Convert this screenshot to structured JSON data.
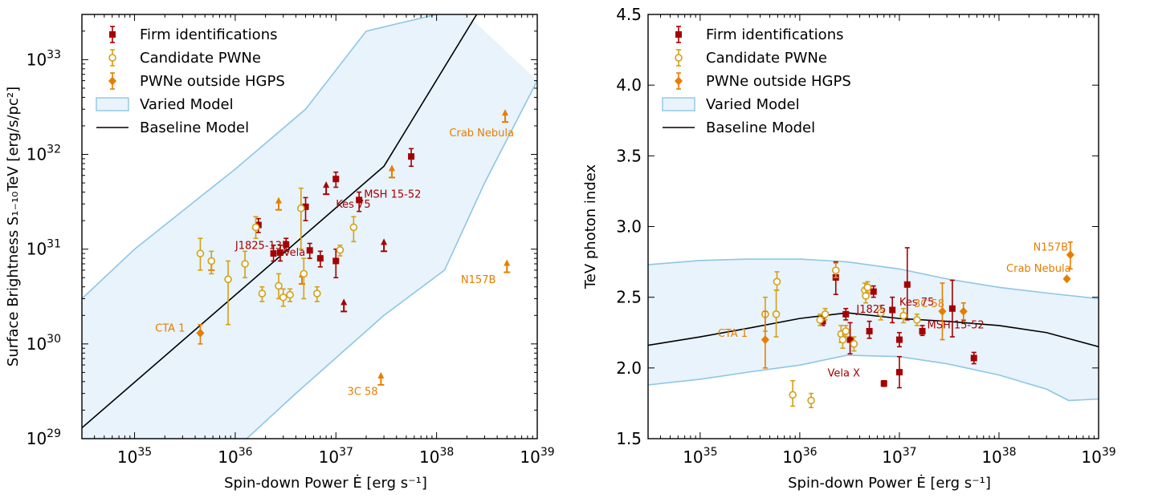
{
  "colors": {
    "firm": "#a50000",
    "candidate": "#d4a017",
    "outside": "#e67e00",
    "band_fill": "#e8f3fb",
    "band_edge": "#8ec6e6",
    "baseline": "#000000"
  },
  "chart_data": [
    {
      "type": "scatter",
      "xlabel": "Spin-down Power Ė [erg s⁻¹]",
      "ylabel": "Surface Brightness S₁₋₁₀TeV [erg/s/pc²]",
      "xscale": "log",
      "yscale": "log",
      "xlim": [
        3e+34,
        1e+39
      ],
      "ylim": [
        1e+29,
        3e+33
      ],
      "xticks": [
        {
          "value": 1e+35,
          "base": "10",
          "exp": "35"
        },
        {
          "value": 1e+36,
          "base": "10",
          "exp": "36"
        },
        {
          "value": 1e+37,
          "base": "10",
          "exp": "37"
        },
        {
          "value": 1e+38,
          "base": "10",
          "exp": "38"
        },
        {
          "value": 1e+39,
          "base": "10",
          "exp": "39"
        }
      ],
      "yticks": [
        {
          "value": 1e+29,
          "base": "10",
          "exp": "29"
        },
        {
          "value": 1e+30,
          "base": "10",
          "exp": "30"
        },
        {
          "value": 1e+31,
          "base": "10",
          "exp": "31"
        },
        {
          "value": 1e+32,
          "base": "10",
          "exp": "32"
        },
        {
          "value": 1e+33,
          "base": "10",
          "exp": "33"
        }
      ],
      "legend": {
        "placement": "top-left",
        "entries": [
          "Firm identifications",
          "Candidate PWNe",
          "PWNe outside HGPS",
          "Varied Model",
          "Baseline Model"
        ]
      },
      "series": [
        {
          "name": "Firm identifications",
          "marker": "square",
          "color_key": "firm",
          "points": [
            {
              "x": 1.7e+36,
              "y": 1.8e+31,
              "ylo": 1.5e+31,
              "yhi": 2.1e+31
            },
            {
              "x": 2.4e+36,
              "y": 9e+30,
              "ylo": 7.5e+30,
              "yhi": 1.1e+31
            },
            {
              "x": 2.8e+36,
              "y": 9.2e+30,
              "ylo": 7.5e+30,
              "yhi": 1.1e+31
            },
            {
              "x": 3.2e+36,
              "y": 1.12e+31,
              "ylo": 9.5e+30,
              "yhi": 1.3e+31
            },
            {
              "x": 5e+36,
              "y": 2.8e+31,
              "ylo": 2e+31,
              "yhi": 3.5e+31
            },
            {
              "x": 5.5e+36,
              "y": 9.7e+30,
              "ylo": 8e+30,
              "yhi": 1.15e+31
            },
            {
              "x": 7e+36,
              "y": 8e+30,
              "ylo": 6.5e+30,
              "yhi": 9.5e+30
            },
            {
              "x": 1e+37,
              "y": 7.5e+30,
              "ylo": 5e+30,
              "yhi": 1e+31
            },
            {
              "x": 1e+37,
              "y": 5.5e+31,
              "ylo": 4.5e+31,
              "yhi": 6.5e+31
            },
            {
              "x": 1.7e+37,
              "y": 3.3e+31,
              "ylo": 2.5e+31,
              "yhi": 4e+31
            },
            {
              "x": 5.6e+37,
              "y": 9.5e+31,
              "ylo": 7.5e+31,
              "yhi": 1.15e+32
            }
          ]
        },
        {
          "name": "Candidate PWNe",
          "marker": "circle",
          "color_key": "candidate",
          "points": [
            {
              "x": 4.5e+35,
              "y": 9e+30,
              "ylo": 6e+30,
              "yhi": 1.3e+31
            },
            {
              "x": 5.8e+35,
              "y": 7.5e+30,
              "ylo": 5.5e+30,
              "yhi": 9.5e+30
            },
            {
              "x": 8.5e+35,
              "y": 4.8e+30,
              "ylo": 1.6e+30,
              "yhi": 7.5e+30
            },
            {
              "x": 1.25e+36,
              "y": 7e+30,
              "ylo": 5e+30,
              "yhi": 9.5e+30
            },
            {
              "x": 1.6e+36,
              "y": 1.7e+31,
              "ylo": 1.3e+31,
              "yhi": 2.2e+31
            },
            {
              "x": 1.85e+36,
              "y": 3.4e+30,
              "ylo": 2.8e+30,
              "yhi": 4e+30
            },
            {
              "x": 2.7e+36,
              "y": 4.1e+30,
              "ylo": 3e+30,
              "yhi": 5.5e+30
            },
            {
              "x": 3e+36,
              "y": 3.1e+30,
              "ylo": 2.5e+30,
              "yhi": 3.8e+30
            },
            {
              "x": 3.5e+36,
              "y": 3.3e+30,
              "ylo": 2.8e+30,
              "yhi": 3.8e+30
            },
            {
              "x": 4.5e+36,
              "y": 2.7e+31,
              "ylo": 1e+31,
              "yhi": 4.4e+31
            },
            {
              "x": 4.8e+36,
              "y": 5.5e+30,
              "ylo": 3e+30,
              "yhi": 8e+30
            },
            {
              "x": 6.5e+36,
              "y": 3.4e+30,
              "ylo": 2.8e+30,
              "yhi": 4e+30
            },
            {
              "x": 1.1e+37,
              "y": 9.8e+30,
              "ylo": 8.5e+30,
              "yhi": 1.1e+31
            },
            {
              "x": 1.5e+37,
              "y": 1.7e+31,
              "ylo": 1.2e+31,
              "yhi": 2.2e+31
            }
          ]
        },
        {
          "name": "PWNe outside HGPS",
          "marker": "diamond",
          "color_key": "outside",
          "points": [
            {
              "x": 4.5e+35,
              "y": 1.3e+30,
              "ylo": 1e+30,
              "yhi": 1.6e+30
            }
          ]
        }
      ],
      "lower_limits": [
        {
          "x": 2.7e+36,
          "y": 2.6e+31,
          "color_key": "outside"
        },
        {
          "x": 5.8e+35,
          "y": 6e+30,
          "color_key": "outside"
        },
        {
          "x": 4.6e+36,
          "y": 4.3e+30,
          "color_key": "outside"
        },
        {
          "x": 8e+36,
          "y": 3.8e+31,
          "color_key": "firm"
        },
        {
          "x": 1.2e+37,
          "y": 2.2e+30,
          "color_key": "firm"
        },
        {
          "x": 3e+37,
          "y": 9.5e+30,
          "color_key": "firm"
        },
        {
          "x": 3.6e+37,
          "y": 5.7e+31,
          "color_key": "outside"
        },
        {
          "x": 2.8e+37,
          "y": 3.7e+29,
          "color_key": "outside"
        },
        {
          "x": 4.8e+38,
          "y": 2.2e+32,
          "color_key": "outside"
        },
        {
          "x": 5e+38,
          "y": 5.7e+30,
          "color_key": "outside"
        }
      ],
      "baseline_model": {
        "x": [
          3e+34,
          3e+37,
          2.5e+38
        ],
        "y": [
          1.3e+29,
          7.5e+31,
          3e+33
        ]
      },
      "varied_model": {
        "upper": {
          "x": [
            3e+34,
            1e+35,
            1e+36,
            5e+36,
            2e+37,
            1e+38,
            2e+38,
            2e+38
          ],
          "y": [
            3e+30,
            1e+31,
            7e+31,
            3e+32,
            2e+33,
            3e+33,
            3e+33,
            3e+33
          ]
        },
        "lower": {
          "x": [
            3e+34,
            1.3e+36,
            4e+36,
            3e+37,
            1.2e+38,
            3e+38,
            1e+39
          ],
          "y": [
            1e+29,
            1e+29,
            3e+29,
            2e+30,
            6e+30,
            5e+31,
            6e+32
          ]
        }
      },
      "annotations": [
        {
          "text": "Crab Nebula",
          "x": 2.8e+38,
          "y": 1.55e+32,
          "color_key": "outside",
          "anchor": "middle"
        },
        {
          "text": "MSH 15-52",
          "x": 1.9e+37,
          "y": 3.5e+31,
          "color_key": "firm",
          "anchor": "start"
        },
        {
          "text": "Kes 75",
          "x": 1e+37,
          "y": 2.75e+31,
          "color_key": "firm",
          "anchor": "start"
        },
        {
          "text": "J1825-137",
          "x": 1e+36,
          "y": 1e+31,
          "color_key": "firm",
          "anchor": "start"
        },
        {
          "text": "Vela",
          "x": 3e+36,
          "y": 8.5e+30,
          "color_key": "firm",
          "anchor": "start"
        },
        {
          "text": "N157B",
          "x": 2.6e+38,
          "y": 4.4e+30,
          "color_key": "outside",
          "anchor": "middle"
        },
        {
          "text": "CTA 1",
          "x": 1.6e+35,
          "y": 1.35e+30,
          "color_key": "outside",
          "anchor": "start"
        },
        {
          "text": "3C 58",
          "x": 1.3e+37,
          "y": 2.9e+29,
          "color_key": "outside",
          "anchor": "start"
        }
      ]
    },
    {
      "type": "scatter",
      "xlabel": "Spin-down Power Ė [erg s⁻¹]",
      "ylabel": "TeV photon index",
      "xscale": "log",
      "yscale": "linear",
      "xlim": [
        3e+34,
        1e+39
      ],
      "ylim": [
        1.5,
        4.5
      ],
      "xticks": [
        {
          "value": 1e+35,
          "base": "10",
          "exp": "35"
        },
        {
          "value": 1e+36,
          "base": "10",
          "exp": "36"
        },
        {
          "value": 1e+37,
          "base": "10",
          "exp": "37"
        },
        {
          "value": 1e+38,
          "base": "10",
          "exp": "38"
        },
        {
          "value": 1e+39,
          "base": "10",
          "exp": "39"
        }
      ],
      "yticks": [
        {
          "value": 1.5,
          "label": "1.5"
        },
        {
          "value": 2.0,
          "label": "2.0"
        },
        {
          "value": 2.5,
          "label": "2.5"
        },
        {
          "value": 3.0,
          "label": "3.0"
        },
        {
          "value": 3.5,
          "label": "3.5"
        },
        {
          "value": 4.0,
          "label": "4.0"
        },
        {
          "value": 4.5,
          "label": "4.5"
        }
      ],
      "legend": {
        "placement": "top-left",
        "entries": [
          "Firm identifications",
          "Candidate PWNe",
          "PWNe outside HGPS",
          "Varied Model",
          "Baseline Model"
        ]
      },
      "series": [
        {
          "name": "Firm identifications",
          "marker": "square",
          "color_key": "firm",
          "points": [
            {
              "x": 1.7e+36,
              "y": 2.33,
              "ylo": 2.3,
              "yhi": 2.36
            },
            {
              "x": 2.3e+36,
              "y": 2.64,
              "ylo": 2.52,
              "yhi": 2.75
            },
            {
              "x": 2.9e+36,
              "y": 2.38,
              "ylo": 2.34,
              "yhi": 2.42
            },
            {
              "x": 3.2e+36,
              "y": 2.2,
              "ylo": 2.1,
              "yhi": 2.32
            },
            {
              "x": 5e+36,
              "y": 2.26,
              "ylo": 2.21,
              "yhi": 2.33
            },
            {
              "x": 5.5e+36,
              "y": 2.54,
              "ylo": 2.5,
              "yhi": 2.58
            },
            {
              "x": 7e+36,
              "y": 1.89,
              "ylo": 1.87,
              "yhi": 1.91
            },
            {
              "x": 8.5e+36,
              "y": 2.41,
              "ylo": 2.32,
              "yhi": 2.5
            },
            {
              "x": 1e+37,
              "y": 2.2,
              "ylo": 2.15,
              "yhi": 2.25
            },
            {
              "x": 1e+37,
              "y": 1.97,
              "ylo": 1.86,
              "yhi": 2.08
            },
            {
              "x": 1.2e+37,
              "y": 2.59,
              "ylo": 2.34,
              "yhi": 2.85
            },
            {
              "x": 1.7e+37,
              "y": 2.26,
              "ylo": 2.23,
              "yhi": 2.3
            },
            {
              "x": 3.4e+37,
              "y": 2.42,
              "ylo": 2.22,
              "yhi": 2.62
            },
            {
              "x": 5.6e+37,
              "y": 2.07,
              "ylo": 2.03,
              "yhi": 2.11
            }
          ]
        },
        {
          "name": "Candidate PWNe",
          "marker": "circle",
          "color_key": "candidate",
          "points": [
            {
              "x": 4.5e+35,
              "y": 2.38,
              "ylo": 2.26,
              "yhi": 2.5
            },
            {
              "x": 5.8e+35,
              "y": 2.38,
              "ylo": 2.22,
              "yhi": 2.55
            },
            {
              "x": 5.9e+35,
              "y": 2.61,
              "ylo": 2.55,
              "yhi": 2.68
            },
            {
              "x": 8.5e+35,
              "y": 1.81,
              "ylo": 1.73,
              "yhi": 1.91
            },
            {
              "x": 1.3e+36,
              "y": 1.77,
              "ylo": 1.72,
              "yhi": 1.82
            },
            {
              "x": 1.6e+36,
              "y": 2.34,
              "ylo": 2.3,
              "yhi": 2.38
            },
            {
              "x": 1.8e+36,
              "y": 2.38,
              "ylo": 2.34,
              "yhi": 2.42
            },
            {
              "x": 2.3e+36,
              "y": 2.69,
              "ylo": 2.64,
              "yhi": 2.74
            },
            {
              "x": 2.6e+36,
              "y": 2.24,
              "ylo": 2.18,
              "yhi": 2.3
            },
            {
              "x": 2.7e+36,
              "y": 2.2,
              "ylo": 2.14,
              "yhi": 2.26
            },
            {
              "x": 2.9e+36,
              "y": 2.26,
              "ylo": 2.22,
              "yhi": 2.3
            },
            {
              "x": 3.5e+36,
              "y": 2.17,
              "ylo": 2.12,
              "yhi": 2.22
            },
            {
              "x": 4.5e+36,
              "y": 2.55,
              "ylo": 2.5,
              "yhi": 2.6
            },
            {
              "x": 4.6e+36,
              "y": 2.51,
              "ylo": 2.46,
              "yhi": 2.56
            },
            {
              "x": 4.8e+36,
              "y": 2.57,
              "ylo": 2.53,
              "yhi": 2.61
            },
            {
              "x": 6.5e+36,
              "y": 2.39,
              "ylo": 2.34,
              "yhi": 2.44
            },
            {
              "x": 1.1e+37,
              "y": 2.37,
              "ylo": 2.32,
              "yhi": 2.42
            },
            {
              "x": 1.5e+37,
              "y": 2.34,
              "ylo": 2.3,
              "yhi": 2.38
            }
          ]
        },
        {
          "name": "PWNe outside HGPS",
          "marker": "diamond",
          "color_key": "outside",
          "points": [
            {
              "x": 4.5e+35,
              "y": 2.2,
              "ylo": 2.0,
              "yhi": 2.4
            },
            {
              "x": 2.7e+37,
              "y": 2.4,
              "ylo": 2.2,
              "yhi": 2.6
            },
            {
              "x": 4.4e+37,
              "y": 2.4,
              "ylo": 2.34,
              "yhi": 2.46
            },
            {
              "x": 4.8e+38,
              "y": 2.63,
              "ylo": 2.62,
              "yhi": 2.64
            },
            {
              "x": 5.2e+38,
              "y": 2.8,
              "ylo": 2.7,
              "yhi": 2.89
            }
          ]
        }
      ],
      "baseline_model": {
        "x": [
          3e+34,
          1e+35,
          3e+35,
          1e+36,
          3e+36,
          1e+37,
          3e+37,
          1e+38,
          3e+38,
          1e+39
        ],
        "y": [
          2.16,
          2.22,
          2.28,
          2.35,
          2.39,
          2.35,
          2.33,
          2.3,
          2.25,
          2.15
        ]
      },
      "varied_model": {
        "upper": {
          "x": [
            3e+34,
            1e+35,
            3e+35,
            1e+36,
            3e+36,
            1e+37,
            3e+37,
            1e+38,
            3e+38,
            1e+39
          ],
          "y": [
            2.73,
            2.76,
            2.77,
            2.77,
            2.75,
            2.7,
            2.63,
            2.57,
            2.53,
            2.49
          ]
        },
        "lower": {
          "x": [
            3e+34,
            1e+35,
            3e+35,
            1e+36,
            3e+36,
            1e+37,
            3e+37,
            1e+38,
            3e+38,
            5e+38,
            1e+39
          ],
          "y": [
            1.88,
            1.92,
            1.97,
            2.02,
            2.09,
            2.08,
            2.03,
            1.95,
            1.85,
            1.77,
            1.78
          ]
        }
      },
      "annotations": [
        {
          "text": "N157B",
          "x": 3.3e+38,
          "y": 2.83,
          "color_key": "outside",
          "anchor": "middle"
        },
        {
          "text": "Crab Nebula",
          "x": 2.5e+38,
          "y": 2.68,
          "color_key": "outside",
          "anchor": "middle"
        },
        {
          "text": "Kes 75",
          "x": 1e+37,
          "y": 2.44,
          "color_key": "firm",
          "anchor": "start"
        },
        {
          "text": "J1825",
          "x": 3.7e+36,
          "y": 2.39,
          "color_key": "firm",
          "anchor": "start"
        },
        {
          "text": "3C 58",
          "x": 1.4e+37,
          "y": 2.43,
          "color_key": "outside",
          "anchor": "start"
        },
        {
          "text": "MSH 15-52",
          "x": 1.9e+37,
          "y": 2.28,
          "color_key": "firm",
          "anchor": "start"
        },
        {
          "text": "CTA 1",
          "x": 1.5e+35,
          "y": 2.22,
          "color_key": "outside",
          "anchor": "start"
        },
        {
          "text": "Vela X",
          "x": 1.9e+36,
          "y": 1.94,
          "color_key": "firm",
          "anchor": "start"
        }
      ]
    }
  ]
}
